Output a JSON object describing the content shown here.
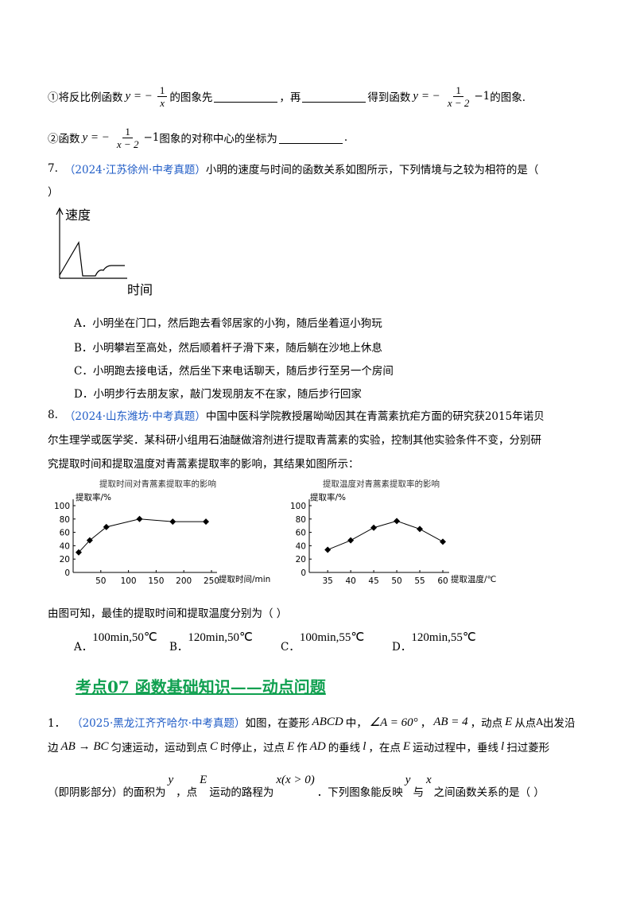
{
  "q6": {
    "line1": [
      "①将反比例函数",
      "y = −",
      "1",
      "x",
      "的图象先",
      "，再",
      "得到函数",
      "y = −",
      "1",
      "x − 2",
      "−1",
      "的图象."
    ],
    "line2": [
      "②函数",
      "y = −",
      "1",
      "x − 2",
      "−1",
      "图象的对称中心的坐标为",
      "."
    ]
  },
  "q7": {
    "number": "7.",
    "source": "（2024·江苏徐州·中考真题）",
    "stem": "小明的速度与时间的函数关系如图所示，下列情境与之较为相符的是（",
    "stem_end": "）",
    "graph": {
      "y_label": "速度",
      "x_label": "时间"
    },
    "options": [
      {
        "label": "A．",
        "text": "小明坐在门口，然后跑去看邻居家的小狗，随后坐着逗小狗玩"
      },
      {
        "label": "B．",
        "text": "小明攀岩至高处，然后顺着杆子滑下来，随后躺在沙地上休息"
      },
      {
        "label": "C．",
        "text": "小明跑去接电话，然后坐下来电话聊天，随后步行至另一个房间"
      },
      {
        "label": "D．",
        "text": "小明步行去朋友家，敲门发现朋友不在家，随后步行回家"
      }
    ]
  },
  "q8": {
    "number": "8.",
    "source": "（2024·山东潍坊·中考真题）",
    "stem": [
      "中国中医科学院教授屠呦呦因其在青蒿素抗疟方面的研究获2015年诺贝",
      "尔生理学或医学奖．某科研小组用石油醚做溶剂进行提取青蒿素的实验，控制其他实验条件不变，分别研",
      "究提取时间和提取温度对青蒿素提取率的影响，其结果如图所示："
    ],
    "charts": [
      {
        "type": "line",
        "title": "提取时间对青蒿素提取率的影响",
        "y_label": "提取率/%",
        "x_label": "提取时间/min",
        "x": [
          10,
          30,
          60,
          120,
          180,
          240
        ],
        "values": [
          30,
          48,
          68,
          80,
          76,
          76
        ],
        "xlim": [
          0,
          250
        ],
        "ylim": [
          0,
          100
        ],
        "xticks": [
          50,
          100,
          150,
          200,
          250
        ],
        "yticks": [
          0,
          20,
          40,
          60,
          80,
          100
        ],
        "color": "#000000"
      },
      {
        "type": "line",
        "title": "提取温度对青蒿素提取率的影响",
        "y_label": "提取率/%",
        "x_label": "提取温度/℃",
        "x": [
          35,
          40,
          45,
          50,
          55,
          60
        ],
        "values": [
          34,
          48,
          67,
          77,
          65,
          46
        ],
        "xlim": [
          31,
          60
        ],
        "ylim": [
          0,
          100
        ],
        "xticks": [
          35,
          40,
          45,
          50,
          55,
          60
        ],
        "yticks": [
          0,
          20,
          40,
          60,
          80,
          100
        ],
        "color": "#000000"
      }
    ],
    "question": "由图可知，最佳的提取时间和提取温度分别为（    ）",
    "options": [
      {
        "label": "A．",
        "text": "100min,50℃"
      },
      {
        "label": "B．",
        "text": "120min,50℃"
      },
      {
        "label": "C．",
        "text": "100min,55℃"
      },
      {
        "label": "D．",
        "text": "120min,55℃"
      }
    ]
  },
  "section": {
    "title": "考点07  函数基础知识——动点问题"
  },
  "q1": {
    "number": "1．",
    "source": "（2025·黑龙江齐齐哈尔·中考真题）",
    "line1": [
      "如图，在菱形",
      "ABCD",
      "中，",
      "∠A = 60°",
      "，",
      "AB = 4",
      "，动点",
      "E",
      "从点",
      "A",
      "出发沿"
    ],
    "line2": [
      "边",
      "AB → BC",
      "匀速运动，运动到点",
      "C",
      "时停止，过点",
      "E",
      "作",
      "AD",
      "的垂线",
      "l",
      "，在点",
      "E",
      "运动过程中，垂线",
      "l",
      "扫过菱形"
    ],
    "line3": [
      "（即阴影部分）的面积为",
      "y",
      "，点",
      "E",
      "运动的路程为",
      "x(x > 0)",
      "．下列图象能反映",
      "y",
      "与",
      "x",
      "之间函数关系的是（    ）"
    ]
  }
}
